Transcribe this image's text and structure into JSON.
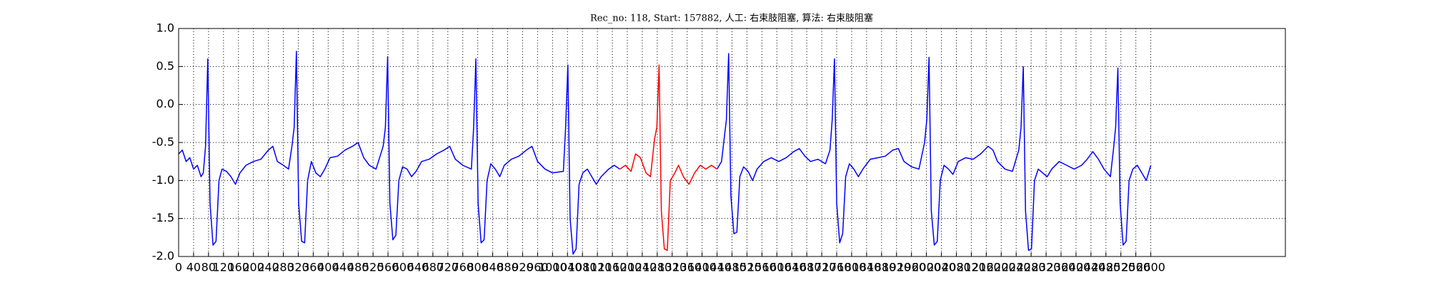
{
  "chart_data": {
    "type": "line",
    "title": "Rec_no: 118, Start: 157882, 人工: 右束肢阻塞, 算法: 右束肢阻塞",
    "xlim": [
      0,
      2960
    ],
    "ylim": [
      -2,
      1
    ],
    "xticks": [
      0,
      40,
      80,
      120,
      160,
      200,
      240,
      280,
      320,
      360,
      400,
      440,
      480,
      520,
      560,
      600,
      640,
      680,
      720,
      760,
      800,
      840,
      880,
      920,
      960,
      1000,
      1040,
      1080,
      1120,
      1160,
      1200,
      1240,
      1280,
      1320,
      1360,
      1400,
      1440,
      1480,
      1520,
      1560,
      1600,
      1640,
      1680,
      1720,
      1760,
      1800,
      1840,
      1880,
      1920,
      1960,
      2000,
      2040,
      2080,
      2120,
      2160,
      2200,
      2240,
      2280,
      2320,
      2360,
      2400,
      2440,
      2480,
      2520,
      2560,
      2600
    ],
    "yticks": [
      {
        "value": -2,
        "label": "-2.0"
      },
      -1.5,
      {
        "value": -1,
        "label": "-1.0"
      },
      -0.5,
      {
        "value": 0,
        "label": "0.0"
      },
      0.5,
      {
        "value": 1,
        "label": "1.0"
      }
    ],
    "grid": true,
    "series": [
      {
        "color": "#0000ff",
        "x": [
          0,
          10,
          20,
          30,
          40,
          50,
          60,
          66,
          72,
          78,
          84,
          92,
          100,
          108,
          116,
          128,
          140,
          152,
          164,
          180,
          200,
          220,
          240,
          252,
          264,
          280,
          294,
          303,
          309,
          315,
          321,
          329,
          337,
          345,
          355,
          367,
          379,
          391,
          405,
          425,
          445,
          465,
          480,
          495,
          510,
          528,
          547,
          553,
          559,
          565,
          573,
          581,
          589,
          599,
          611,
          623,
          635,
          650,
          670,
          690,
          710,
          725,
          740,
          760,
          783,
          789,
          795,
          801,
          809,
          817,
          825,
          835,
          847,
          859,
          871,
          890,
          910,
          930,
          945,
          960,
          980,
          1000,
          1029,
          1035,
          1041,
          1047,
          1055,
          1063,
          1071,
          1081,
          1093,
          1105,
          1117,
          1130,
          1150,
          1165,
          1180,
          1310,
          1440,
          1452,
          1459,
          1465,
          1471,
          1477,
          1485,
          1493,
          1501,
          1511,
          1523,
          1535,
          1547,
          1565,
          1585,
          1605,
          1625,
          1645,
          1660,
          1675,
          1690,
          1710,
          1730,
          1742,
          1748,
          1754,
          1760,
          1768,
          1776,
          1784,
          1794,
          1806,
          1818,
          1830,
          1850,
          1870,
          1890,
          1910,
          1925,
          1940,
          1960,
          1980,
          1995,
          2001,
          2007,
          2013,
          2021,
          2029,
          2037,
          2047,
          2059,
          2071,
          2085,
          2105,
          2125,
          2145,
          2165,
          2178,
          2190,
          2210,
          2230,
          2247,
          2253,
          2259,
          2265,
          2273,
          2281,
          2289,
          2299,
          2311,
          2323,
          2335,
          2355,
          2375,
          2395,
          2415,
          2430,
          2445,
          2460,
          2475,
          2492,
          2500,
          2506,
          2512,
          2518,
          2526,
          2534,
          2542,
          2552,
          2564,
          2576,
          2588,
          2600
        ],
        "values": [
          -0.65,
          -0.6,
          -0.75,
          -0.7,
          -0.85,
          -0.8,
          -0.95,
          -0.9,
          -0.55,
          0.6,
          -1.3,
          -1.85,
          -1.8,
          -1.0,
          -0.85,
          -0.88,
          -0.95,
          -1.05,
          -0.9,
          -0.8,
          -0.75,
          -0.72,
          -0.6,
          -0.55,
          -0.75,
          -0.8,
          -0.85,
          -0.55,
          -0.3,
          0.7,
          -1.3,
          -1.8,
          -1.82,
          -1.0,
          -0.75,
          -0.9,
          -0.95,
          -0.85,
          -0.7,
          -0.68,
          -0.6,
          -0.55,
          -0.5,
          -0.7,
          -0.8,
          -0.85,
          -0.55,
          -0.3,
          0.63,
          -1.3,
          -1.78,
          -1.72,
          -1.0,
          -0.82,
          -0.85,
          -0.95,
          -0.88,
          -0.75,
          -0.72,
          -0.65,
          -0.6,
          -0.55,
          -0.72,
          -0.8,
          -0.85,
          -0.3,
          0.6,
          -1.3,
          -1.82,
          -1.78,
          -1.0,
          -0.78,
          -0.85,
          -0.95,
          -0.8,
          -0.72,
          -0.68,
          -0.6,
          -0.55,
          -0.75,
          -0.85,
          -0.9,
          -0.88,
          -0.3,
          0.52,
          -1.5,
          -1.97,
          -1.9,
          -1.05,
          -0.9,
          -0.85,
          -0.95,
          -1.05,
          -0.95,
          -0.85,
          -0.8,
          -0.85,
          null,
          -0.85,
          -0.75,
          -0.45,
          -0.2,
          0.67,
          -1.2,
          -1.7,
          -1.68,
          -0.95,
          -0.82,
          -0.88,
          -1.0,
          -0.85,
          -0.75,
          -0.7,
          -0.75,
          -0.7,
          -0.62,
          -0.58,
          -0.68,
          -0.75,
          -0.72,
          -0.78,
          -0.6,
          -0.2,
          0.6,
          -1.3,
          -1.82,
          -1.7,
          -0.95,
          -0.78,
          -0.85,
          -0.95,
          -0.85,
          -0.72,
          -0.7,
          -0.68,
          -0.6,
          -0.58,
          -0.75,
          -0.82,
          -0.85,
          -0.5,
          -0.2,
          0.62,
          -1.4,
          -1.85,
          -1.8,
          -1.0,
          -0.8,
          -0.85,
          -0.92,
          -0.75,
          -0.7,
          -0.72,
          -0.65,
          -0.55,
          -0.6,
          -0.75,
          -0.85,
          -0.88,
          -0.6,
          -0.3,
          0.5,
          -1.4,
          -1.92,
          -1.9,
          -1.0,
          -0.85,
          -0.9,
          -0.95,
          -0.85,
          -0.75,
          -0.8,
          -0.85,
          -0.8,
          -0.72,
          -0.62,
          -0.72,
          -0.85,
          -0.95,
          -0.6,
          -0.3,
          0.48,
          -1.3,
          -1.85,
          -1.8,
          -1.0,
          -0.85,
          -0.8,
          -0.9,
          -1.0,
          -0.8
        ]
      },
      {
        "color": "#ff0000",
        "x": [
          1180,
          1195,
          1210,
          1222,
          1235,
          1250,
          1262,
          1273,
          1279,
          1285,
          1291,
          1299,
          1307,
          1315,
          1325,
          1337,
          1350,
          1365,
          1380,
          1395,
          1410,
          1425,
          1440
        ],
        "values": [
          -0.85,
          -0.8,
          -0.88,
          -0.65,
          -0.7,
          -0.9,
          -0.95,
          -0.45,
          -0.3,
          0.52,
          -1.4,
          -1.9,
          -1.92,
          -1.0,
          -0.92,
          -0.8,
          -0.95,
          -1.05,
          -0.9,
          -0.8,
          -0.85,
          -0.8,
          -0.85
        ]
      }
    ]
  }
}
